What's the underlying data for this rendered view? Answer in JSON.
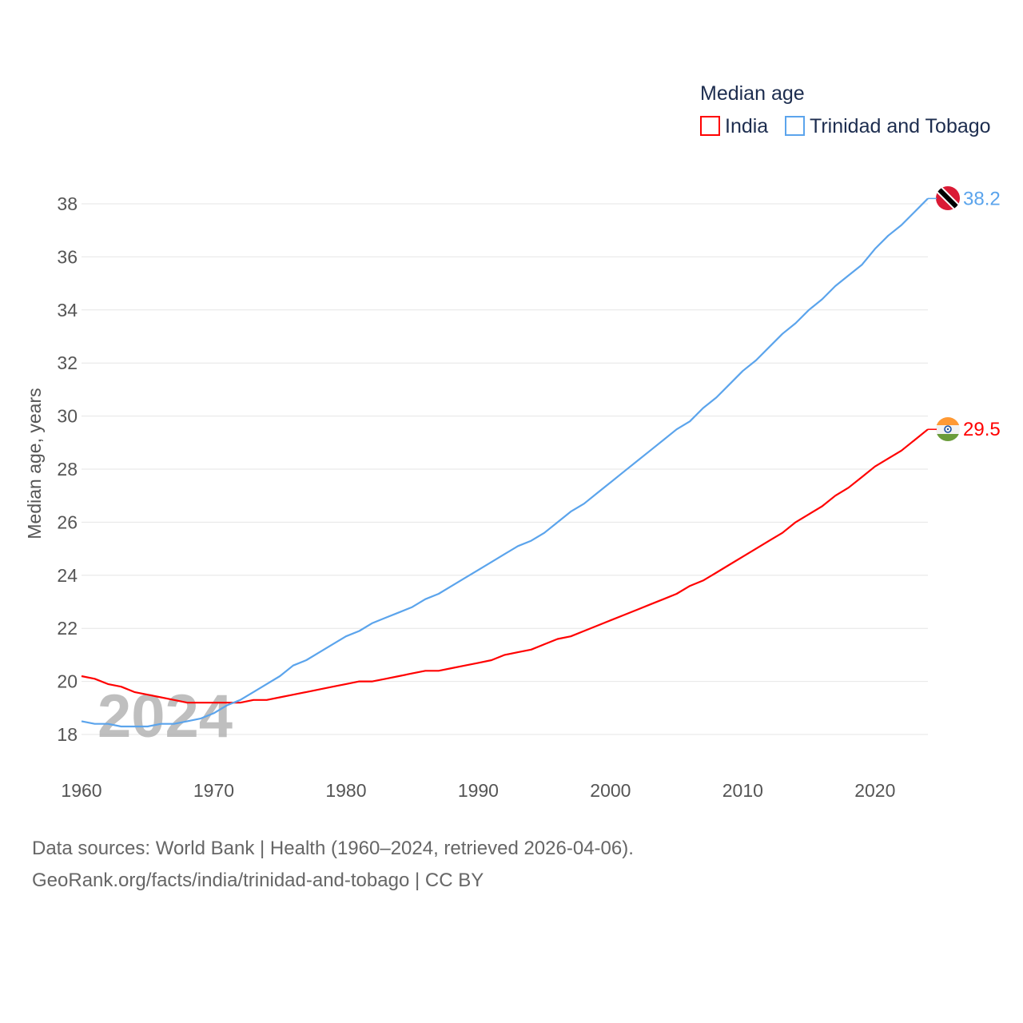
{
  "chart_data": {
    "type": "line",
    "title": "Median age",
    "xlabel": "",
    "ylabel": "Median age, years",
    "xlim": [
      1960,
      2024
    ],
    "ylim": [
      18,
      38
    ],
    "x_ticks": [
      1960,
      1970,
      1980,
      1990,
      2000,
      2010,
      2020
    ],
    "y_ticks": [
      18,
      20,
      22,
      24,
      26,
      28,
      30,
      32,
      34,
      36,
      38
    ],
    "grid": true,
    "legend_position": "top-right",
    "watermark_year": "2024",
    "x": [
      1960,
      1961,
      1962,
      1963,
      1964,
      1965,
      1966,
      1967,
      1968,
      1969,
      1970,
      1971,
      1972,
      1973,
      1974,
      1975,
      1976,
      1977,
      1978,
      1979,
      1980,
      1981,
      1982,
      1983,
      1984,
      1985,
      1986,
      1987,
      1988,
      1989,
      1990,
      1991,
      1992,
      1993,
      1994,
      1995,
      1996,
      1997,
      1998,
      1999,
      2000,
      2001,
      2002,
      2003,
      2004,
      2005,
      2006,
      2007,
      2008,
      2009,
      2010,
      2011,
      2012,
      2013,
      2014,
      2015,
      2016,
      2017,
      2018,
      2019,
      2020,
      2021,
      2022,
      2023,
      2024
    ],
    "series": [
      {
        "name": "India",
        "color": "#ff0000",
        "end_label": "29.5",
        "flag": "india-flag",
        "values": [
          20.2,
          20.1,
          19.9,
          19.8,
          19.6,
          19.5,
          19.4,
          19.3,
          19.2,
          19.2,
          19.2,
          19.2,
          19.2,
          19.3,
          19.3,
          19.4,
          19.5,
          19.6,
          19.7,
          19.8,
          19.9,
          20.0,
          20.0,
          20.1,
          20.2,
          20.3,
          20.4,
          20.4,
          20.5,
          20.6,
          20.7,
          20.8,
          21.0,
          21.1,
          21.2,
          21.4,
          21.6,
          21.7,
          21.9,
          22.1,
          22.3,
          22.5,
          22.7,
          22.9,
          23.1,
          23.3,
          23.6,
          23.8,
          24.1,
          24.4,
          24.7,
          25.0,
          25.3,
          25.6,
          26.0,
          26.3,
          26.6,
          27.0,
          27.3,
          27.7,
          28.1,
          28.4,
          28.7,
          29.1,
          29.5
        ]
      },
      {
        "name": "Trinidad and Tobago",
        "color": "#5ba4ec",
        "end_label": "38.2",
        "flag": "trinidad-and-tobago-flag",
        "values": [
          18.5,
          18.4,
          18.4,
          18.3,
          18.3,
          18.3,
          18.4,
          18.4,
          18.5,
          18.6,
          18.8,
          19.1,
          19.3,
          19.6,
          19.9,
          20.2,
          20.6,
          20.8,
          21.1,
          21.4,
          21.7,
          21.9,
          22.2,
          22.4,
          22.6,
          22.8,
          23.1,
          23.3,
          23.6,
          23.9,
          24.2,
          24.5,
          24.8,
          25.1,
          25.3,
          25.6,
          26.0,
          26.4,
          26.7,
          27.1,
          27.5,
          27.9,
          28.3,
          28.7,
          29.1,
          29.5,
          29.8,
          30.3,
          30.7,
          31.2,
          31.7,
          32.1,
          32.6,
          33.1,
          33.5,
          34.0,
          34.4,
          34.9,
          35.3,
          35.7,
          36.3,
          36.8,
          37.2,
          37.7,
          38.2
        ]
      }
    ]
  },
  "legend": {
    "title": "Median age",
    "items": [
      "India",
      "Trinidad and Tobago"
    ]
  },
  "footer": {
    "line1": "Data sources: World Bank | Health (1960–2024, retrieved 2026-04-06).",
    "line2": "GeoRank.org/facts/india/trinidad-and-tobago | CC BY"
  }
}
